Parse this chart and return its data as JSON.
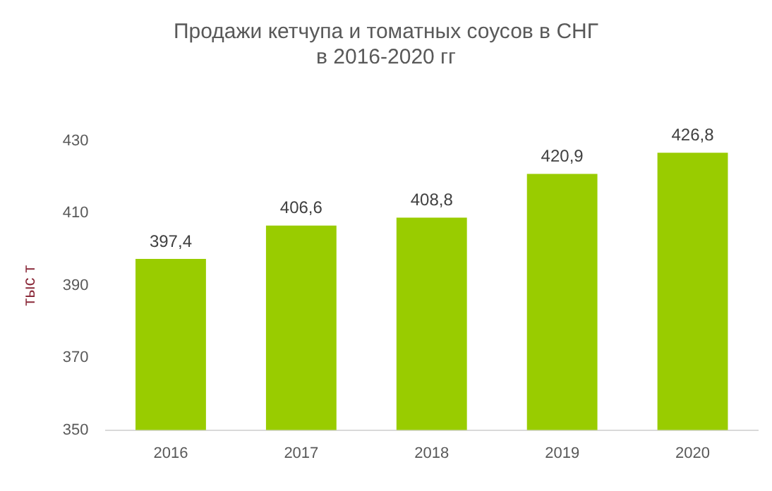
{
  "chart_data": {
    "type": "bar",
    "title": "Продажи кетчупа и томатных соусов в СНГ\nв 2016-2020 гг",
    "ylabel": "тыс т",
    "categories": [
      "2016",
      "2017",
      "2018",
      "2019",
      "2020"
    ],
    "values": [
      397.4,
      406.6,
      408.8,
      420.9,
      426.8
    ],
    "value_labels": [
      "397,4",
      "406,6",
      "408,8",
      "420,9",
      "426,8"
    ],
    "color": "#99cc00",
    "ylim": [
      350,
      430
    ],
    "yticks": [
      350,
      370,
      390,
      410,
      430
    ],
    "grid": false,
    "legend": false
  }
}
